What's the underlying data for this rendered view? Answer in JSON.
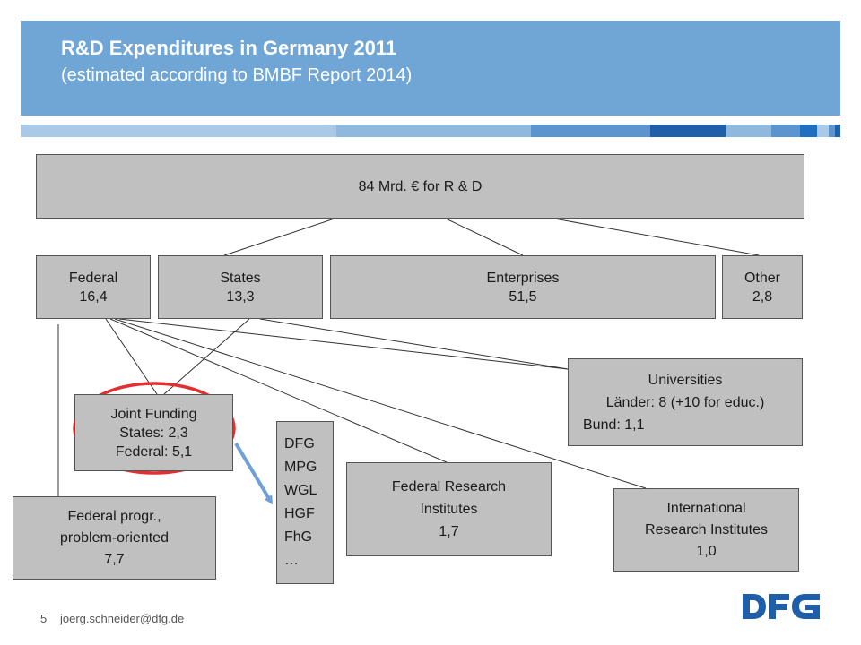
{
  "header": {
    "title": "R&D Expenditures in Germany 2011",
    "subtitle": "(estimated according to BMBF Report 2014)"
  },
  "nodes": {
    "total": {
      "line1": "84 Mrd. € for R & D"
    },
    "federal": {
      "line1": "Federal",
      "line2": "16,4"
    },
    "states": {
      "line1": "States",
      "line2": "13,3"
    },
    "enterprises": {
      "line1": "Enterprises",
      "line2": "51,5"
    },
    "other": {
      "line1": "Other",
      "line2": "2,8"
    },
    "universities": {
      "line1": "Universities",
      "line2": "Länder: 8 (+10 for educ.)",
      "line3": "Bund: 1,1"
    },
    "joint_funding": {
      "line1": "Joint Funding",
      "line2": "States: 2,3",
      "line3": "Federal: 5,1"
    },
    "organizations": {
      "items": [
        "DFG",
        "MPG",
        "WGL",
        "HGF",
        "FhG",
        "…"
      ]
    },
    "federal_research": {
      "line1": "Federal Research",
      "line2": "Institutes",
      "line3": "1,7"
    },
    "international": {
      "line1": "International",
      "line2": "Research Institutes",
      "line3": "1,0"
    },
    "federal_programs": {
      "line1": "Federal progr.,",
      "line2": "problem-oriented",
      "line3": "7,7"
    }
  },
  "footer": {
    "page_number": "5",
    "email": "joerg.schneider@dfg.de",
    "logo_text": "DFG"
  },
  "colors": {
    "header": "#6fa6d6",
    "box_fill": "#c0c0c0",
    "highlight_circle": "#e03030",
    "arrow": "#6fa0d8",
    "logo": "#1f5ea8"
  }
}
